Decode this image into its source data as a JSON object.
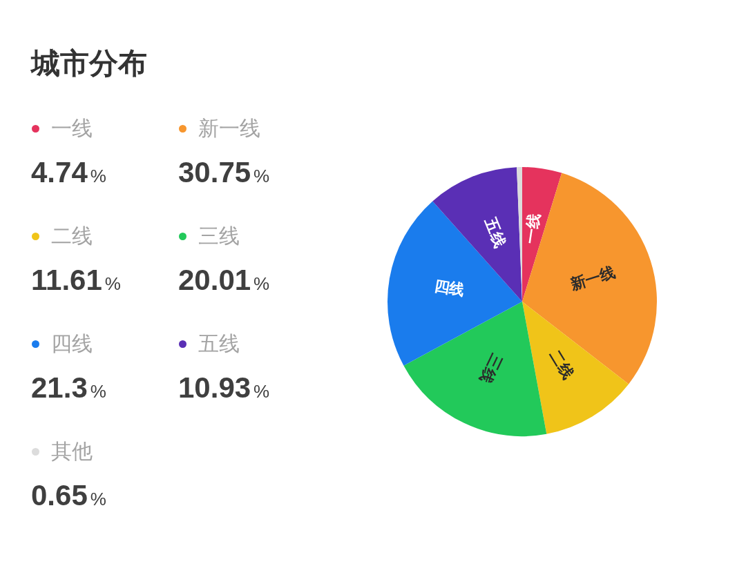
{
  "chart_data": {
    "type": "pie",
    "title": "城市分布",
    "categories": [
      "一线",
      "新一线",
      "二线",
      "三线",
      "四线",
      "五线",
      "其他"
    ],
    "values": [
      4.74,
      30.75,
      11.61,
      20.01,
      21.3,
      10.93,
      0.65
    ],
    "colors": [
      "#e5335d",
      "#f7962e",
      "#f0c419",
      "#22c95a",
      "#1a7ced",
      "#5a2fb5",
      "#dcdcdc"
    ],
    "value_labels": [
      "4.74%",
      "30.75%",
      "11.61%",
      "20.01%",
      "21.3%",
      "10.93%",
      "0.65%"
    ],
    "legend": "left"
  }
}
